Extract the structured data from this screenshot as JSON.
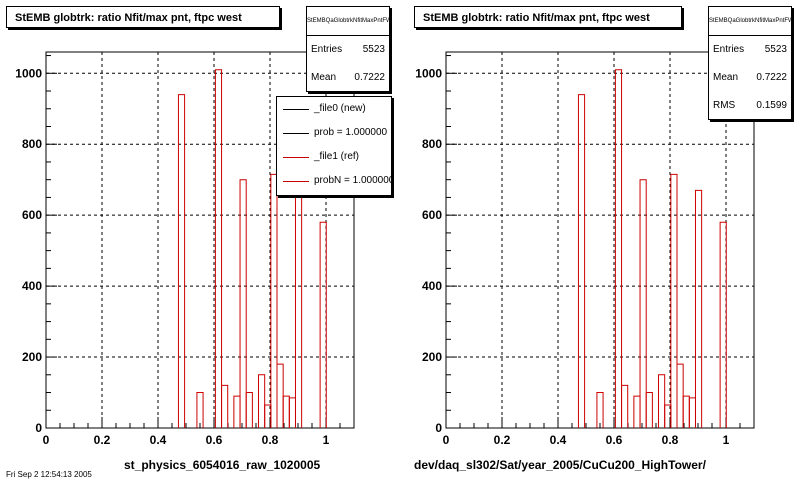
{
  "panels": [
    {
      "title": "StEMB globtrk: ratio Nfit/max pnt, ftpc west",
      "x_title": "st_physics_6054016_raw_1020005",
      "stats": {
        "name": "StEMBQaGlobtrkNfitMaxPntFW",
        "rows": [
          {
            "label": "Entries",
            "value": "5523"
          },
          {
            "label": "Mean",
            "value": "0.7222"
          }
        ]
      },
      "legend": [
        {
          "label": "_file0 (new)",
          "color": "#000000"
        },
        {
          "label": "prob = 1.000000",
          "color": "#000000"
        },
        {
          "label": "_file1 (ref)",
          "color": "#cc0000"
        },
        {
          "label": "probN = 1.000000",
          "color": "#cc0000"
        }
      ]
    },
    {
      "title": "StEMB globtrk: ratio Nfit/max pnt, ftpc west",
      "x_title": "dev/daq_sl302/Sat/year_2005/CuCu200_HighTower/",
      "stats": {
        "name": "StEMBQaGlobtrkNfitMaxPntFW",
        "rows": [
          {
            "label": "Entries",
            "value": "5523"
          },
          {
            "label": "Mean",
            "value": "0.7222"
          },
          {
            "label": "RMS",
            "value": "0.1599"
          }
        ]
      }
    }
  ],
  "datestamp": "Fri Sep  2 12:54:13 2005",
  "chart_data": [
    {
      "type": "bar",
      "title": "StEMB globtrk: ratio Nfit/max pnt, ftpc west",
      "xlabel": "st_physics_6054016_raw_1020005",
      "ylabel": "",
      "xlim": [
        0,
        1.1
      ],
      "ylim": [
        0,
        1060
      ],
      "x_ticks": [
        "0",
        "0.2",
        "0.4",
        "0.6",
        "0.8",
        "1"
      ],
      "y_ticks": [
        "0",
        "200",
        "400",
        "600",
        "800",
        "1000"
      ],
      "grid": true,
      "bin_width": 0.022,
      "series": [
        {
          "color": "#cc0000",
          "x": [
            0.484,
            0.506,
            0.55,
            0.572,
            0.594,
            0.616,
            0.638,
            0.66,
            0.682,
            0.704,
            0.726,
            0.748,
            0.77,
            0.792,
            0.814,
            0.836,
            0.858,
            0.88,
            0.902,
            0.924,
            0.99
          ],
          "values": [
            940,
            0,
            100,
            0,
            0,
            1010,
            120,
            0,
            90,
            700,
            100,
            0,
            150,
            65,
            715,
            180,
            90,
            85,
            670,
            0,
            580
          ]
        }
      ]
    },
    {
      "type": "bar",
      "title": "StEMB globtrk: ratio Nfit/max pnt, ftpc west",
      "xlabel": "dev/daq_sl302/Sat/year_2005/CuCu200_HighTower/",
      "ylabel": "",
      "xlim": [
        0,
        1.1
      ],
      "ylim": [
        0,
        1060
      ],
      "x_ticks": [
        "0",
        "0.2",
        "0.4",
        "0.6",
        "0.8",
        "1"
      ],
      "y_ticks": [
        "0",
        "200",
        "400",
        "600",
        "800",
        "1000"
      ],
      "grid": true,
      "bin_width": 0.022,
      "series": [
        {
          "color": "#cc0000",
          "x": [
            0.484,
            0.506,
            0.55,
            0.572,
            0.594,
            0.616,
            0.638,
            0.66,
            0.682,
            0.704,
            0.726,
            0.748,
            0.77,
            0.792,
            0.814,
            0.836,
            0.858,
            0.88,
            0.902,
            0.924,
            0.99
          ],
          "values": [
            940,
            0,
            100,
            0,
            0,
            1010,
            120,
            0,
            90,
            700,
            100,
            0,
            150,
            65,
            715,
            180,
            90,
            85,
            670,
            0,
            580
          ]
        }
      ]
    }
  ]
}
